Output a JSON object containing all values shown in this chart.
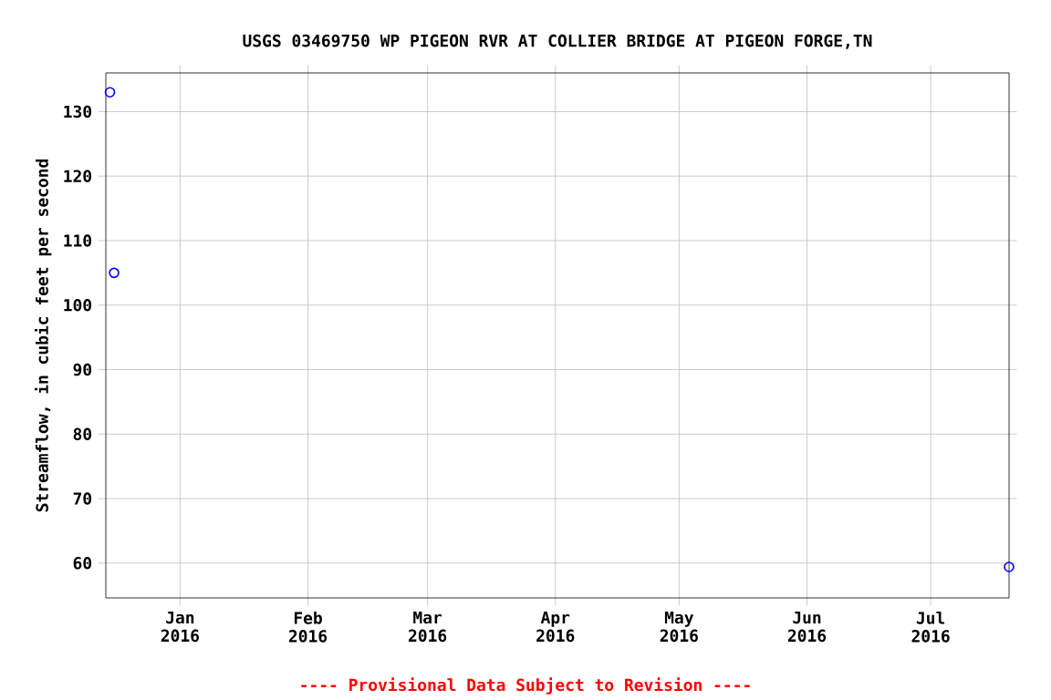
{
  "chart_data": {
    "type": "scatter",
    "title": "USGS 03469750 WP PIGEON RVR AT COLLIER BRIDGE AT PIGEON FORGE,TN",
    "ylabel": "Streamflow, in cubic feet per second",
    "annotations": [
      "---- Provisional Data Subject to Revision ----"
    ],
    "x": [
      "2015-12-15",
      "2015-12-16",
      "2016-07-20"
    ],
    "series": [
      {
        "color": "#0000ff",
        "values": [
          133,
          105,
          59.4
        ]
      }
    ],
    "xlim": [
      "2015-12-14",
      "2016-07-20"
    ],
    "xticks": [
      {
        "value": "2016-01-01",
        "label": "Jan 2016"
      },
      {
        "value": "2016-02-01",
        "label": "Feb 2016"
      },
      {
        "value": "2016-03-01",
        "label": "Mar 2016"
      },
      {
        "value": "2016-04-01",
        "label": "Apr 2016"
      },
      {
        "value": "2016-05-01",
        "label": "May 2016"
      },
      {
        "value": "2016-06-01",
        "label": "Jun 2016"
      },
      {
        "value": "2016-07-01",
        "label": "Jul 2016"
      }
    ],
    "ylim": [
      54.6,
      136
    ],
    "yticks": [
      60,
      70,
      80,
      90,
      100,
      110,
      120,
      130
    ],
    "grid": true,
    "marker": "circle"
  }
}
